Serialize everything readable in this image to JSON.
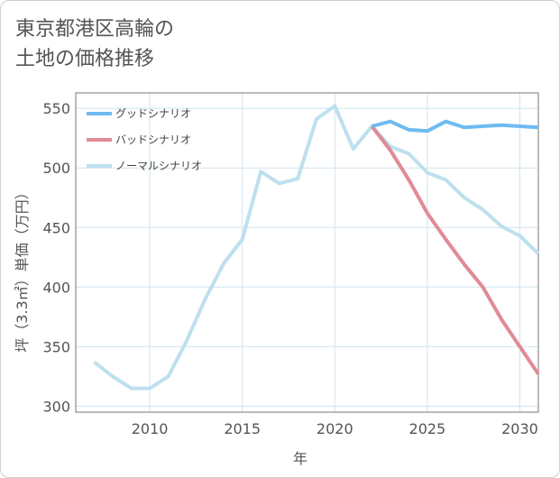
{
  "page_title_line1": "東京都港区高輪の",
  "page_title_line2": "土地の価格推移",
  "chart_data": {
    "type": "line",
    "title": "東京都港区高輪の土地の価格推移",
    "xlabel": "年",
    "ylabel": "坪（3.3㎡）単価（万円）",
    "xlim": [
      2006,
      2031
    ],
    "ylim": [
      295,
      563
    ],
    "xticks": [
      2010,
      2015,
      2020,
      2025,
      2030
    ],
    "yticks": [
      300,
      350,
      400,
      450,
      500,
      550
    ],
    "grid": true,
    "legend_position": "top-left",
    "series": [
      {
        "name": "グッドシナリオ",
        "color": "#6ebbf0",
        "x": [
          2022,
          2023,
          2024,
          2025,
          2026,
          2027,
          2028,
          2029,
          2030,
          2031
        ],
        "values": [
          535,
          539,
          532,
          531,
          539,
          534,
          535,
          536,
          535,
          534
        ]
      },
      {
        "name": "バッドシナリオ",
        "color": "#e08b95",
        "x": [
          2022,
          2023,
          2024,
          2025,
          2026,
          2027,
          2028,
          2029,
          2030,
          2031
        ],
        "values": [
          535,
          515,
          490,
          462,
          440,
          419,
          400,
          373,
          350,
          327
        ]
      },
      {
        "name": "ノーマルシナリオ",
        "color": "#bde0ee",
        "x": [
          2007,
          2008,
          2009,
          2010,
          2011,
          2012,
          2013,
          2014,
          2015,
          2016,
          2017,
          2018,
          2019,
          2020,
          2021,
          2022,
          2023,
          2024,
          2025,
          2026,
          2027,
          2028,
          2029,
          2030,
          2031
        ],
        "values": [
          337,
          325,
          315,
          315,
          325,
          355,
          390,
          420,
          440,
          497,
          487,
          491,
          541,
          552,
          516,
          535,
          518,
          512,
          496,
          490,
          475,
          465,
          451,
          443,
          428
        ]
      }
    ]
  }
}
